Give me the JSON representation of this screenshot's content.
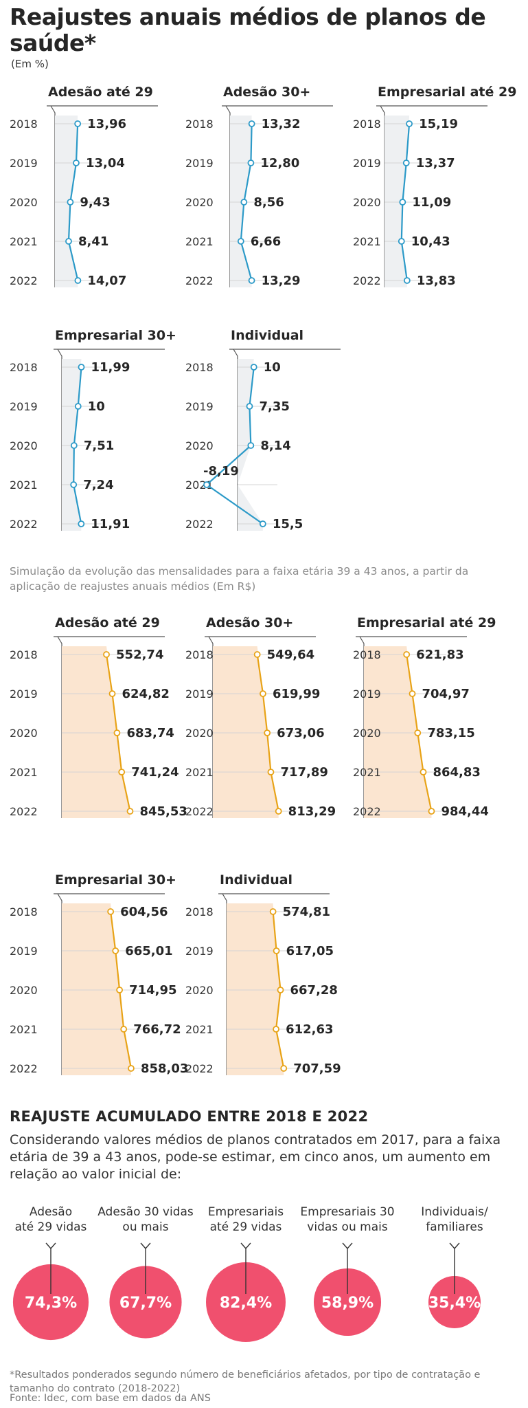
{
  "title": "Reajustes anuais médios de planos de saúde*",
  "unit": "(Em %)",
  "years": [
    "2018",
    "2019",
    "2020",
    "2021",
    "2022"
  ],
  "mid_note": "Simulação da evolução das mensalidades para a faixa etária 39 a 43 anos, a partir da aplicação de reajustes anuais médios (Em R$)",
  "colors": {
    "pct_line": "#2c9ac8",
    "pct_fill": "#eef0f2",
    "money_line": "#e8a317",
    "money_fill": "#fbe5d0",
    "circle": "#f0506e"
  },
  "chart_data": [
    {
      "type": "line",
      "title": "Adesão até 29",
      "categories": [
        "2018",
        "2019",
        "2020",
        "2021",
        "2022"
      ],
      "values": [
        13.96,
        13.04,
        9.43,
        8.41,
        14.07
      ],
      "labels": [
        "13,96",
        "13,04",
        "9,43",
        "8,41",
        "14,07"
      ],
      "xlim": [
        0,
        16
      ]
    },
    {
      "type": "line",
      "title": "Adesão 30+",
      "categories": [
        "2018",
        "2019",
        "2020",
        "2021",
        "2022"
      ],
      "values": [
        13.32,
        12.8,
        8.56,
        6.66,
        13.29
      ],
      "labels": [
        "13,32",
        "12,80",
        "8,56",
        "6,66",
        "13,29"
      ],
      "xlim": [
        0,
        16
      ]
    },
    {
      "type": "line",
      "title": "Empresarial até 29",
      "categories": [
        "2018",
        "2019",
        "2020",
        "2021",
        "2022"
      ],
      "values": [
        15.19,
        13.37,
        11.09,
        10.43,
        13.83
      ],
      "labels": [
        "15,19",
        "13,37",
        "11,09",
        "10,43",
        "13,83"
      ],
      "xlim": [
        0,
        16
      ]
    },
    {
      "type": "line",
      "title": "Empresarial 30+",
      "categories": [
        "2018",
        "2019",
        "2020",
        "2021",
        "2022"
      ],
      "values": [
        11.99,
        10,
        7.51,
        7.24,
        11.91
      ],
      "labels": [
        "11,99",
        "10",
        "7,51",
        "7,24",
        "11,91"
      ],
      "xlim": [
        0,
        16
      ]
    },
    {
      "type": "line",
      "title": "Individual",
      "categories": [
        "2018",
        "2019",
        "2020",
        "2021",
        "2022"
      ],
      "values": [
        10,
        7.35,
        8.14,
        -8.19,
        15.5
      ],
      "labels": [
        "10",
        "7,35",
        "8,14",
        "-8,19",
        "15,5"
      ],
      "xlim": [
        -8.19,
        16
      ]
    },
    {
      "type": "area",
      "title": "Adesão até 29",
      "categories": [
        "2018",
        "2019",
        "2020",
        "2021",
        "2022"
      ],
      "values": [
        552.74,
        624.82,
        683.74,
        741.24,
        845.53
      ],
      "labels": [
        "552,74",
        "624,82",
        "683,74",
        "741,24",
        "845,53"
      ],
      "xlim": [
        0,
        850
      ]
    },
    {
      "type": "area",
      "title": "Adesão 30+",
      "categories": [
        "2018",
        "2019",
        "2020",
        "2021",
        "2022"
      ],
      "values": [
        549.64,
        619.99,
        673.06,
        717.89,
        813.29
      ],
      "labels": [
        "549,64",
        "619,99",
        "673,06",
        "717,89",
        "813,29"
      ],
      "xlim": [
        0,
        850
      ]
    },
    {
      "type": "area",
      "title": "Empresarial até 29",
      "categories": [
        "2018",
        "2019",
        "2020",
        "2021",
        "2022"
      ],
      "values": [
        621.83,
        704.97,
        783.15,
        864.83,
        984.44
      ],
      "labels": [
        "621,83",
        "704,97",
        "783,15",
        "864,83",
        "984,44"
      ],
      "xlim": [
        0,
        1000
      ]
    },
    {
      "type": "area",
      "title": "Empresarial 30+",
      "categories": [
        "2018",
        "2019",
        "2020",
        "2021",
        "2022"
      ],
      "values": [
        604.56,
        665.01,
        714.95,
        766.72,
        858.03
      ],
      "labels": [
        "604,56",
        "665,01",
        "714,95",
        "766,72",
        "858,03"
      ],
      "xlim": [
        0,
        850
      ]
    },
    {
      "type": "area",
      "title": "Individual",
      "categories": [
        "2018",
        "2019",
        "2020",
        "2021",
        "2022"
      ],
      "values": [
        574.81,
        617.05,
        667.28,
        612.63,
        707.59
      ],
      "labels": [
        "574,81",
        "617,05",
        "667,28",
        "612,63",
        "707,59"
      ],
      "xlim": [
        0,
        850
      ]
    },
    {
      "type": "bubble",
      "title": "REAJUSTE ACUMULADO ENTRE 2018 E 2022",
      "items": [
        {
          "label": [
            "Adesão",
            "até 29 vidas"
          ],
          "value": 74.3,
          "text": "74,3%"
        },
        {
          "label": [
            "Adesão 30 vidas",
            "ou mais"
          ],
          "value": 67.7,
          "text": "67,7%"
        },
        {
          "label": [
            "Empresariais",
            "até 29 vidas"
          ],
          "value": 82.4,
          "text": "82,4%"
        },
        {
          "label": [
            "Empresariais 30",
            "vidas ou mais"
          ],
          "value": 58.9,
          "text": "58,9%"
        },
        {
          "label": [
            "Individuais/",
            "familiares"
          ],
          "value": 35.4,
          "text": "35,4%"
        }
      ]
    }
  ],
  "section_heading": "REAJUSTE ACUMULADO ENTRE 2018 E 2022",
  "section_intro": "Considerando valores médios de planos contratados em 2017, para a faixa etária de 39 a 43 anos, pode-se estimar, em cinco anos, um aumento em relação ao valor inicial de:",
  "footnote": "*Resultados ponderados segundo número de beneficiários afetados, por tipo de contratação e tamanho do contrato (2018-2022)",
  "source": "Fonte: Idec, com base em dados da ANS"
}
